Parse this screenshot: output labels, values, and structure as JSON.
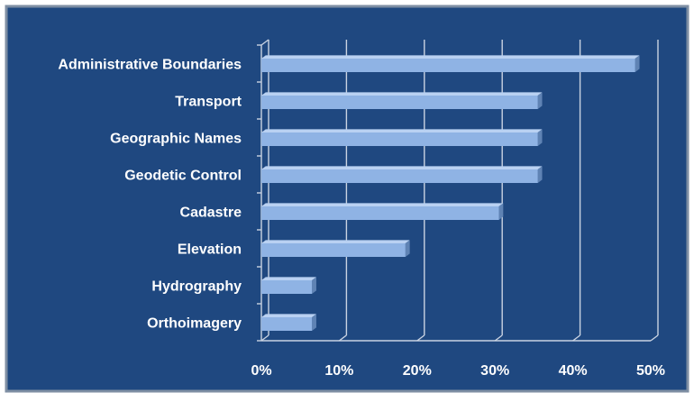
{
  "chart_data": {
    "type": "bar",
    "orientation": "horizontal",
    "title": "",
    "xlabel": "",
    "ylabel": "",
    "categories": [
      "Administrative Boundaries",
      "Transport",
      "Geographic Names",
      "Geodetic Control",
      "Cadastre",
      "Elevation",
      "Hydrography",
      "Orthoimagery"
    ],
    "values": [
      48,
      35.5,
      35.5,
      35.5,
      30.5,
      18.5,
      6.5,
      6.5
    ],
    "xlim": [
      0,
      50
    ],
    "xticks": [
      0,
      10,
      20,
      30,
      40,
      50
    ],
    "xtick_labels": [
      "0%",
      "10%",
      "20%",
      "30%",
      "40%",
      "50%"
    ],
    "grid": true,
    "legend": "none",
    "colors": {
      "background": "#1f4880",
      "border": "#7f8fa3",
      "bar_front": "#8fb3e4",
      "bar_top": "#b9d1f2",
      "bar_side": "#5f83b4",
      "text": "#ffffff",
      "grid": "#c9d3e2"
    }
  }
}
